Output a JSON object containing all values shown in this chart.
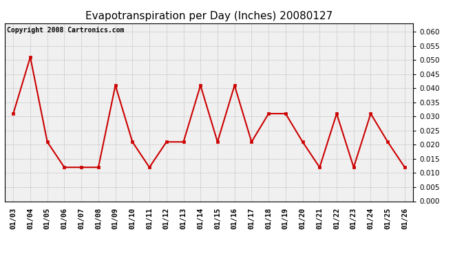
{
  "title": "Evapotranspiration per Day (Inches) 20080127",
  "copyright_text": "Copyright 2008 Cartronics.com",
  "x_labels": [
    "01/03",
    "01/04",
    "01/05",
    "01/06",
    "01/07",
    "01/08",
    "01/09",
    "01/10",
    "01/11",
    "01/12",
    "01/13",
    "01/14",
    "01/15",
    "01/16",
    "01/17",
    "01/18",
    "01/19",
    "01/20",
    "01/21",
    "01/22",
    "01/23",
    "01/24",
    "01/25",
    "01/26"
  ],
  "y_values": [
    0.031,
    0.051,
    0.021,
    0.012,
    0.012,
    0.012,
    0.041,
    0.021,
    0.012,
    0.021,
    0.021,
    0.041,
    0.021,
    0.041,
    0.021,
    0.031,
    0.031,
    0.021,
    0.012,
    0.031,
    0.012,
    0.031,
    0.021,
    0.012
  ],
  "line_color": "#cc0000",
  "marker": "s",
  "marker_size": 3,
  "ylim": [
    0.0,
    0.063
  ],
  "yticks": [
    0.0,
    0.005,
    0.01,
    0.015,
    0.02,
    0.025,
    0.03,
    0.035,
    0.04,
    0.045,
    0.05,
    0.055,
    0.06
  ],
  "bg_color": "#f0f0f0",
  "grid_color": "#bbbbbb",
  "title_fontsize": 11,
  "copyright_fontsize": 7,
  "tick_fontsize": 7.5,
  "fig_width": 6.9,
  "fig_height": 3.75,
  "dpi": 100
}
